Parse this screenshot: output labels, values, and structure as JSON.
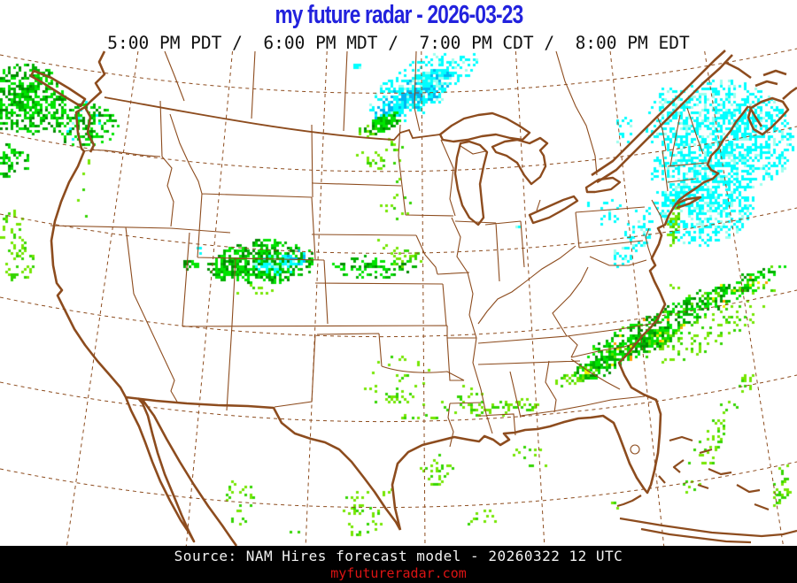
{
  "header": {
    "title": "my future radar - 2026-03-23",
    "title_color": "#2222dd",
    "time_line": "5:00 PM PDT /  6:00 PM MDT /  7:00 PM CDT /  8:00 PM EDT",
    "time_color": "#111111"
  },
  "footer": {
    "source_line": "Source: NAM Hires forecast model - 20260322 12 UTC",
    "source_color": "#f2f2f2",
    "site": "myfutureradar.com",
    "site_color": "#dd1414",
    "bar_color": "#000000"
  },
  "map": {
    "background": "#ffffff",
    "line_color": "#8d4c1e",
    "region": "Continental United States with southern Canada, Mexico, Bahamas and Cuba",
    "projection": "conic (Lambert-style), dashed lat/lon graticule"
  },
  "precip": {
    "legend": {
      "rain_light": "#74E600",
      "rain_moderate": "#00E400",
      "rain_heavy": "#008A00",
      "rain_intense": "#F2F200",
      "rain_extreme": "#FFA000",
      "snow_light": "#00FFFF",
      "snow_moderate": "#00B4F0"
    },
    "palettes": {
      "greens": [
        [
          "#00E400",
          0.5
        ],
        [
          "#00B000",
          0.3
        ],
        [
          "#008A00",
          0.2
        ]
      ],
      "light": [
        [
          "#74E600",
          0.65
        ],
        [
          "#33D400",
          0.35
        ]
      ],
      "cyans": [
        [
          "#00FFFF",
          0.8
        ],
        [
          "#9AFFEF",
          0.2
        ]
      ],
      "blues": [
        [
          "#00B4F0",
          0.62
        ],
        [
          "#00FFFF",
          0.38
        ]
      ],
      "green_yellow": [
        [
          "#00E400",
          0.42
        ],
        [
          "#00B000",
          0.28
        ],
        [
          "#008A00",
          0.16
        ],
        [
          "#60E000",
          0.08
        ],
        [
          "#F2F200",
          0.04
        ],
        [
          "#FFA000",
          0.02
        ]
      ]
    },
    "blob_fields": [
      "cx",
      "cy",
      "rx",
      "ry",
      "rot_deg",
      "density",
      "palette"
    ],
    "blobs": [
      [
        28,
        112,
        48,
        40,
        0,
        0.65,
        "greens"
      ],
      [
        95,
        140,
        38,
        24,
        0,
        0.5,
        "greens"
      ],
      [
        12,
        182,
        22,
        20,
        0,
        0.45,
        "greens"
      ],
      [
        14,
        262,
        16,
        26,
        0,
        0.3,
        "light"
      ],
      [
        22,
        300,
        18,
        22,
        0,
        0.3,
        "light"
      ],
      [
        90,
        135,
        28,
        30,
        0,
        0.08,
        "cyans"
      ],
      [
        95,
        210,
        12,
        35,
        0,
        0.08,
        "light"
      ],
      [
        468,
        108,
        52,
        17,
        -32,
        0.85,
        "blues"
      ],
      [
        470,
        100,
        62,
        28,
        -32,
        0.35,
        "cyans"
      ],
      [
        505,
        80,
        40,
        18,
        -30,
        0.25,
        "cyans"
      ],
      [
        432,
        140,
        24,
        10,
        -25,
        0.8,
        "greens"
      ],
      [
        410,
        150,
        16,
        7,
        -15,
        0.4,
        "light"
      ],
      [
        432,
        176,
        30,
        20,
        0,
        0.12,
        "light"
      ],
      [
        446,
        226,
        18,
        26,
        0,
        0.12,
        "light"
      ],
      [
        400,
        74,
        8,
        5,
        0,
        0.5,
        "cyans"
      ],
      [
        822,
        150,
        75,
        60,
        20,
        0.6,
        "cyans"
      ],
      [
        800,
        230,
        55,
        45,
        -30,
        0.55,
        "cyans"
      ],
      [
        762,
        195,
        26,
        55,
        10,
        0.4,
        "cyans"
      ],
      [
        748,
        130,
        16,
        38,
        15,
        0.3,
        "cyans"
      ],
      [
        704,
        150,
        10,
        22,
        0,
        0.25,
        "cyans"
      ],
      [
        722,
        258,
        16,
        28,
        10,
        0.3,
        "cyans"
      ],
      [
        688,
        240,
        12,
        18,
        20,
        0.25,
        "cyans"
      ],
      [
        700,
        290,
        12,
        16,
        0,
        0.2,
        "cyans"
      ],
      [
        760,
        250,
        7,
        28,
        5,
        0.5,
        "light"
      ],
      [
        852,
        330,
        26,
        16,
        -20,
        0.15,
        "light"
      ],
      [
        758,
        332,
        12,
        10,
        0,
        0.15,
        "light"
      ],
      [
        775,
        352,
        125,
        15,
        -24,
        0.55,
        "green_yellow"
      ],
      [
        722,
        390,
        60,
        11,
        -22,
        0.8,
        "green_yellow"
      ],
      [
        672,
        415,
        30,
        12,
        -15,
        0.7,
        "green_yellow"
      ],
      [
        645,
        428,
        22,
        8,
        -10,
        0.35,
        "light"
      ],
      [
        800,
        375,
        80,
        20,
        -24,
        0.18,
        "light"
      ],
      [
        800,
        505,
        14,
        60,
        25,
        0.2,
        "light"
      ],
      [
        835,
        445,
        10,
        30,
        30,
        0.2,
        "light"
      ],
      [
        882,
        552,
        12,
        28,
        15,
        0.25,
        "light"
      ],
      [
        300,
        297,
        58,
        26,
        0,
        0.7,
        "greens"
      ],
      [
        258,
        302,
        28,
        16,
        0,
        0.5,
        "greens"
      ],
      [
        420,
        300,
        48,
        13,
        0,
        0.45,
        "greens"
      ],
      [
        462,
        290,
        22,
        12,
        0,
        0.3,
        "light"
      ],
      [
        310,
        300,
        26,
        12,
        0,
        0.5,
        "cyans"
      ],
      [
        332,
        290,
        14,
        9,
        0,
        0.6,
        "blues"
      ],
      [
        296,
        328,
        30,
        8,
        0,
        0.15,
        "light"
      ],
      [
        215,
        300,
        10,
        7,
        0,
        0.5,
        "greens"
      ],
      [
        222,
        282,
        8,
        6,
        0,
        0.3,
        "cyans"
      ],
      [
        438,
        272,
        16,
        14,
        0,
        0.1,
        "light"
      ],
      [
        452,
        432,
        45,
        32,
        0,
        0.08,
        "light"
      ],
      [
        448,
        448,
        14,
        9,
        0,
        0.35,
        "light"
      ],
      [
        520,
        448,
        28,
        18,
        0,
        0.1,
        "light"
      ],
      [
        545,
        462,
        40,
        10,
        0,
        0.3,
        "light"
      ],
      [
        472,
        474,
        22,
        7,
        0,
        0.25,
        "light"
      ],
      [
        586,
        458,
        22,
        8,
        0,
        0.3,
        "light"
      ],
      [
        492,
        532,
        20,
        18,
        0,
        0.25,
        "light"
      ],
      [
        600,
        522,
        22,
        22,
        0,
        0.12,
        "light"
      ],
      [
        545,
        585,
        18,
        12,
        0,
        0.2,
        "light"
      ],
      [
        440,
        556,
        10,
        6,
        0,
        0.2,
        "light"
      ],
      [
        692,
        572,
        10,
        8,
        0,
        0.15,
        "light"
      ],
      [
        270,
        568,
        18,
        26,
        0,
        0.12,
        "light"
      ],
      [
        408,
        580,
        26,
        28,
        0,
        0.18,
        "light"
      ],
      [
        330,
        600,
        10,
        6,
        0,
        0.2,
        "light"
      ],
      [
        585,
        255,
        5,
        4,
        0,
        0.4,
        "cyans"
      ],
      [
        662,
        230,
        4,
        4,
        0,
        0.4,
        "cyans"
      ]
    ]
  }
}
